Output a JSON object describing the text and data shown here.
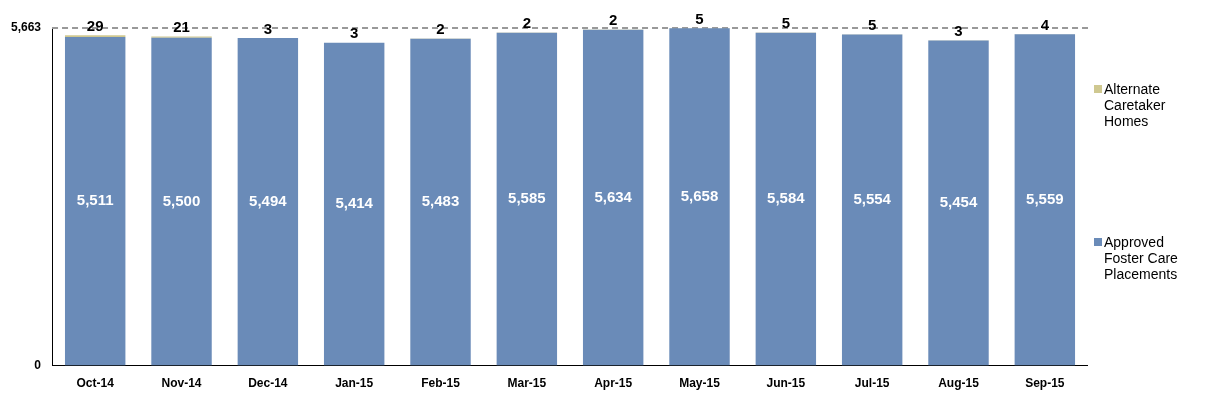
{
  "chart_data": {
    "type": "bar",
    "stacked": true,
    "categories": [
      "Oct-14",
      "Nov-14",
      "Dec-14",
      "Jan-15",
      "Feb-15",
      "Mar-15",
      "Apr-15",
      "May-15",
      "Jun-15",
      "Jul-15",
      "Aug-15",
      "Sep-15"
    ],
    "series": [
      {
        "name": "Approved Foster Care Placements",
        "color": "#6a8bb8",
        "values": [
          5511,
          5500,
          5494,
          5414,
          5483,
          5585,
          5634,
          5658,
          5584,
          5554,
          5454,
          5559
        ],
        "value_labels": [
          "5,511",
          "5,500",
          "5,494",
          "5,414",
          "5,483",
          "5,585",
          "5,634",
          "5,658",
          "5,584",
          "5,554",
          "5,454",
          "5,559"
        ]
      },
      {
        "name": "Alternate Caretaker Homes",
        "color": "#cfc890",
        "values": [
          29,
          21,
          3,
          3,
          2,
          2,
          2,
          5,
          5,
          5,
          3,
          4
        ],
        "value_labels": [
          "29",
          "21",
          "3",
          "3",
          "2",
          "2",
          "2",
          "5",
          "5",
          "5",
          "3",
          "4"
        ]
      }
    ],
    "ylim": [
      0,
      5663
    ],
    "yticks": [
      0,
      {
        "value": 5663,
        "label": "5,663"
      }
    ],
    "ref_lines": [
      {
        "axis": "y",
        "value": 5663,
        "color": "#999999",
        "line_style": "dashed"
      }
    ],
    "grid": false,
    "legend": "right"
  }
}
